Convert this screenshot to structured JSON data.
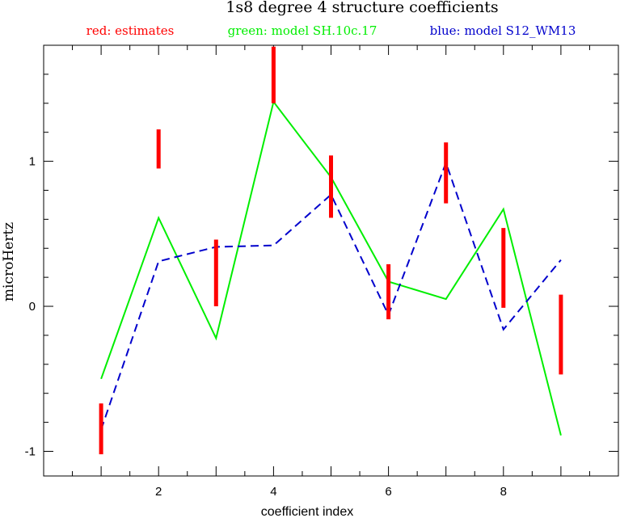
{
  "chart_data": {
    "type": "line",
    "title": "1s8 degree 4 structure coefficients",
    "xlabel": "coefficient index",
    "ylabel": "microHertz",
    "xlim": [
      0,
      10
    ],
    "ylim": [
      -1.17,
      1.8
    ],
    "x_ticks": [
      2,
      4,
      6,
      8
    ],
    "y_ticks": [
      -1,
      0,
      1
    ],
    "grid": false,
    "legend_position": "top",
    "legend": [
      {
        "label": "red: estimates",
        "color": "#ff0000"
      },
      {
        "label": "green: model SH.10c.17",
        "color": "#00ee00"
      },
      {
        "label": "blue: model S12_WM13",
        "color": "#0000cc"
      }
    ],
    "estimates": {
      "name": "estimates",
      "color": "#ff0000",
      "x": [
        1,
        2,
        3,
        4,
        5,
        6,
        7,
        8,
        9
      ],
      "low": [
        -1.02,
        0.95,
        0.0,
        1.4,
        0.61,
        -0.09,
        0.71,
        -0.01,
        -0.47
      ],
      "high": [
        -0.67,
        1.22,
        0.46,
        1.79,
        1.04,
        0.29,
        1.13,
        0.54,
        0.08
      ]
    },
    "series": [
      {
        "name": "model SH.10c.17",
        "color": "#00ee00",
        "style": "solid",
        "x": [
          1,
          2,
          3,
          4,
          5,
          6,
          7,
          8,
          9
        ],
        "values": [
          -0.5,
          0.61,
          -0.22,
          1.41,
          0.89,
          0.17,
          0.05,
          0.67,
          -0.89
        ]
      },
      {
        "name": "model S12_WM13",
        "color": "#0000cc",
        "style": "dashed",
        "x": [
          1,
          2,
          3,
          4,
          5,
          6,
          7,
          8,
          9
        ],
        "values": [
          -0.85,
          0.31,
          0.41,
          0.42,
          0.77,
          -0.06,
          0.99,
          -0.16,
          0.32
        ]
      }
    ]
  }
}
